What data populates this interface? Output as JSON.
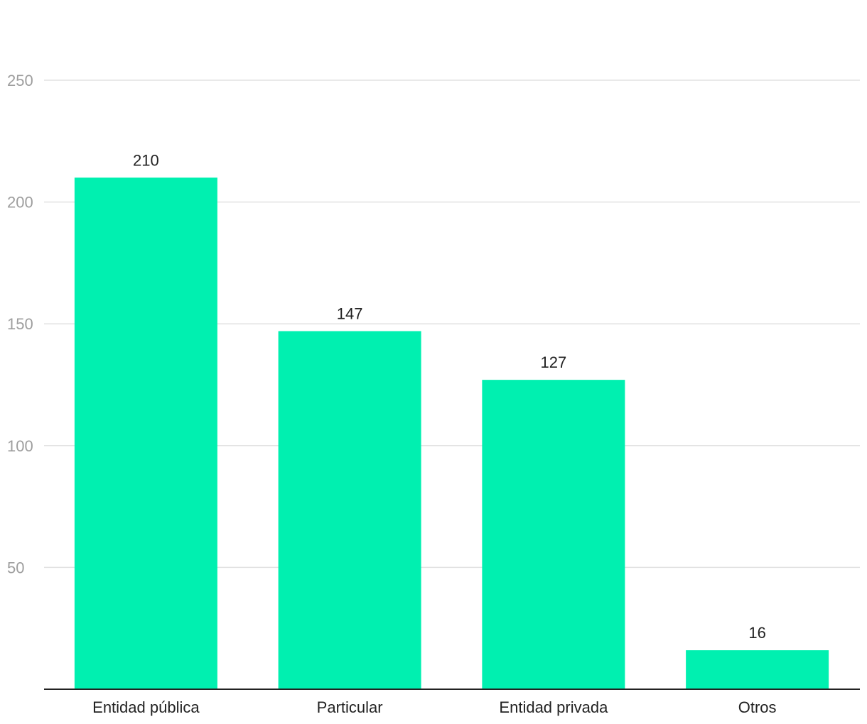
{
  "chart_data": {
    "type": "bar",
    "title": "",
    "xlabel": "",
    "ylabel": "",
    "categories": [
      "Entidad pública",
      "Particular",
      "Entidad privada",
      "Otros"
    ],
    "values": [
      210,
      147,
      127,
      16
    ],
    "data_labels": [
      "210",
      "147",
      "127",
      "16"
    ],
    "ylim": [
      0,
      250
    ],
    "yticks": [
      50,
      100,
      150,
      200,
      250
    ],
    "ytick_labels": [
      "50",
      "100",
      "150",
      "200",
      "250"
    ],
    "grid": true,
    "legend": "none",
    "bar_color": "#00f0b0"
  }
}
